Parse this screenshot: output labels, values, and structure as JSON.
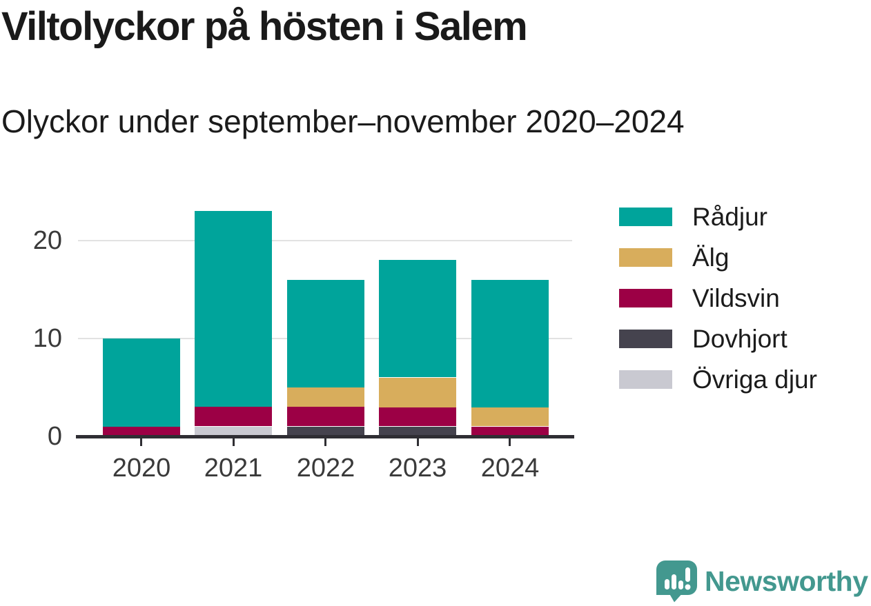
{
  "header": {
    "title": "Viltolyckor på hösten i Salem",
    "subtitle": "Olyckor under september–november 2020–2024"
  },
  "chart_data": {
    "type": "bar",
    "stacked": true,
    "categories": [
      "2020",
      "2021",
      "2022",
      "2023",
      "2024"
    ],
    "series": [
      {
        "name": "Rådjur",
        "color": "#00a49b",
        "values": [
          9,
          20,
          11,
          12,
          13
        ]
      },
      {
        "name": "Älg",
        "color": "#d8ad5c",
        "values": [
          0,
          0,
          2,
          3,
          2
        ]
      },
      {
        "name": "Vildsvin",
        "color": "#9c0045",
        "values": [
          1,
          2,
          2,
          2,
          1
        ]
      },
      {
        "name": "Dovhjort",
        "color": "#45434e",
        "values": [
          0,
          0,
          1,
          1,
          0
        ]
      },
      {
        "name": "Övriga djur",
        "color": "#c9c9d1",
        "values": [
          0,
          1,
          0,
          0,
          0
        ]
      }
    ],
    "totals": [
      10,
      23,
      16,
      18,
      16
    ],
    "stack_order_bottom_to_top": [
      "Övriga djur",
      "Dovhjort",
      "Vildsvin",
      "Älg",
      "Rådjur"
    ],
    "yticks": [
      "0",
      "10",
      "20"
    ],
    "ylim": [
      0,
      23
    ],
    "grid": "horizontal",
    "legend_position": "right",
    "axis_color": "#2f2e33",
    "grid_color": "#e2e2e2",
    "text_color": "#3a3a3a"
  },
  "branding": {
    "logo_text": "Newsworthy",
    "logo_color": "#43988f"
  }
}
